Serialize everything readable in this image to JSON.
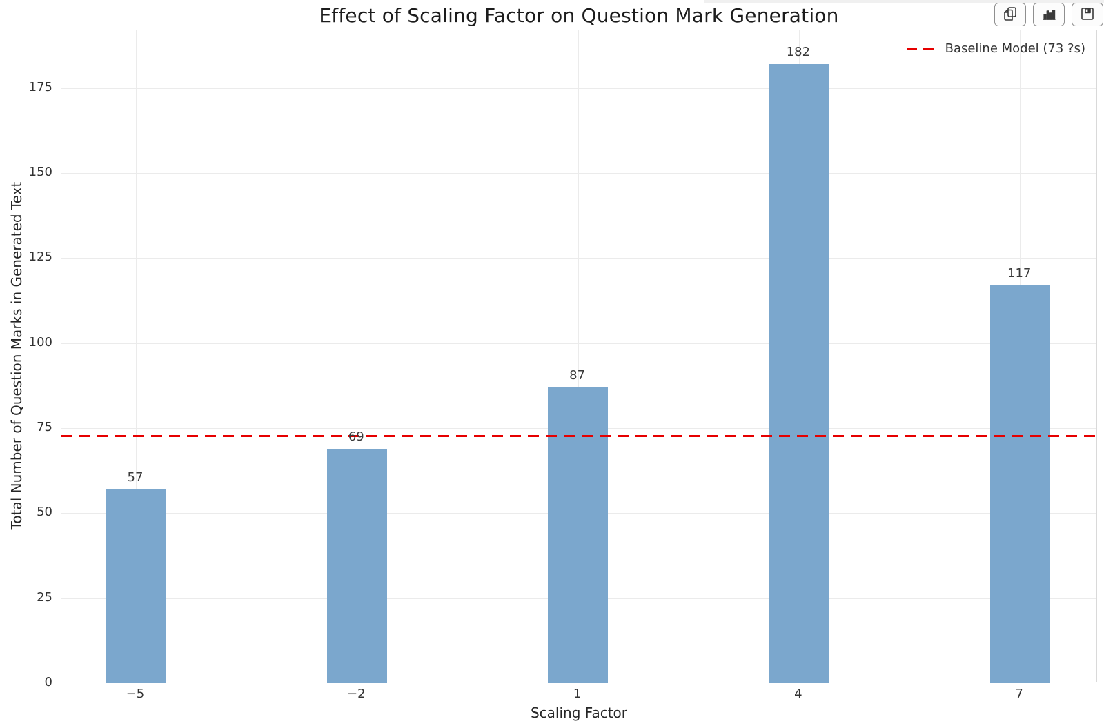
{
  "toolbar": {
    "buttons": [
      {
        "name": "copy",
        "icon": "copy-icon"
      },
      {
        "name": "bar-chart",
        "icon": "bar-chart-icon"
      },
      {
        "name": "save",
        "icon": "save-icon"
      }
    ]
  },
  "chart_data": {
    "type": "bar",
    "title": "Effect of Scaling Factor on Question Mark Generation",
    "xlabel": "Scaling Factor",
    "ylabel": "Total Number of Question Marks in Generated Text",
    "categories": [
      "−5",
      "−2",
      "1",
      "4",
      "7"
    ],
    "values": [
      57,
      69,
      87,
      182,
      117
    ],
    "bar_color": "#7ba7cd",
    "baseline": {
      "value": 73,
      "label": "Baseline Model (73 ?s)",
      "color": "#e60000",
      "style": "dashed"
    },
    "yticks": [
      0,
      25,
      50,
      75,
      100,
      125,
      150,
      175
    ],
    "ylim": [
      0,
      192
    ],
    "grid": true,
    "legend_position": "upper right"
  }
}
